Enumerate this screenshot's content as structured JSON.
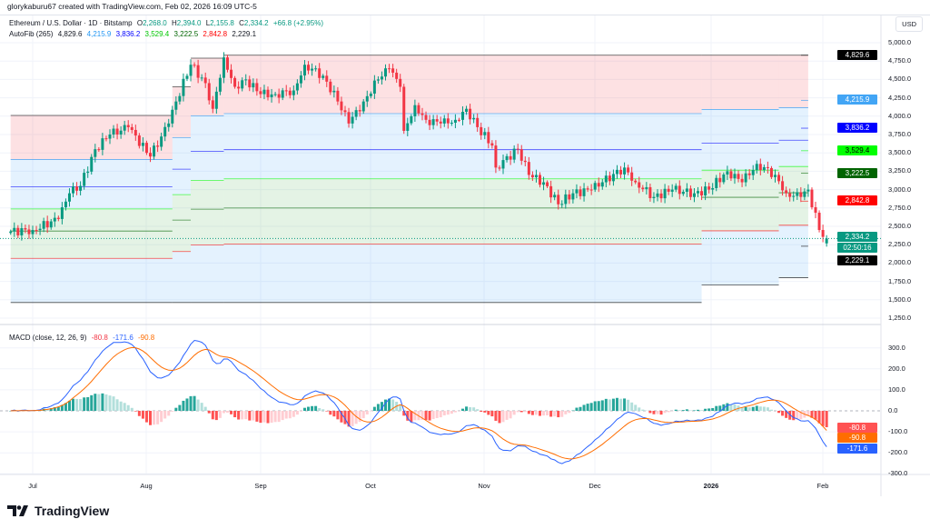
{
  "header": {
    "credit": "glorykaburu67 created with TradingView.com, Feb 02, 2026 16:09 UTC-5",
    "currency": "USD"
  },
  "legend": {
    "symbol": "Ethereum / U.S. Dollar · 1D · Bitstamp",
    "o_label": "O",
    "o": "2,268.0",
    "h_label": "H",
    "h": "2,394.0",
    "l_label": "L",
    "l": "2,155.8",
    "c_label": "C",
    "c": "2,334.2",
    "change": "+66.8 (+2.95%)",
    "autofib_label": "AutoFib (265)",
    "fib_values": [
      "4,829.6",
      "4,215.9",
      "3,836.2",
      "3,529.4",
      "3,222.5",
      "2,842.8",
      "2,229.1"
    ],
    "macd_label": "MACD (close, 12, 26, 9)",
    "macd_values": [
      "-80.8",
      "-171.6",
      "-90.8"
    ]
  },
  "colors": {
    "up": "#089981",
    "down": "#f23645",
    "macd": "#2962ff",
    "signal": "#ff6d00",
    "fib": [
      "#000000",
      "#2196f3",
      "#0000ff",
      "#00ff00",
      "#006400",
      "#ff0000",
      "#000000"
    ]
  },
  "price_axis": {
    "ticks": [
      "5,000.0",
      "4,750.0",
      "4,500.0",
      "4,250.0",
      "4,000.0",
      "3,750.0",
      "3,500.0",
      "3,250.0",
      "3,000.0",
      "2,750.0",
      "2,500.0",
      "2,250.0",
      "2,000.0",
      "1,750.0",
      "1,500.0",
      "1,250.0"
    ]
  },
  "macd_axis": {
    "ticks": [
      "300.0",
      "200.0",
      "100.0",
      "0.0",
      "-100.0",
      "-200.0",
      "-300.0"
    ]
  },
  "tags": {
    "last": "2,334.2",
    "countdown": "02:50:16",
    "hist": "-80.8",
    "signal": "-90.8",
    "macd": "-171.6"
  },
  "time_axis": {
    "labels": [
      "Jul",
      "Aug",
      "Sep",
      "Oct",
      "Nov",
      "Dec",
      "2026",
      "Feb"
    ]
  },
  "footer": {
    "brand": "TradingView"
  },
  "chart_data": {
    "type": "candlestick",
    "title": "Ethereum / U.S. Dollar · 1D · Bitstamp",
    "ylim": [
      1250,
      5000
    ],
    "close_path": [
      [
        "2025-06-25",
        2430
      ],
      [
        "2025-07-01",
        2450
      ],
      [
        "2025-07-08",
        2600
      ],
      [
        "2025-07-11",
        2950
      ],
      [
        "2025-07-14",
        3050
      ],
      [
        "2025-07-18",
        3550
      ],
      [
        "2025-07-22",
        3750
      ],
      [
        "2025-07-27",
        3850
      ],
      [
        "2025-08-02",
        3450
      ],
      [
        "2025-08-07",
        3900
      ],
      [
        "2025-08-09",
        4200
      ],
      [
        "2025-08-13",
        4700
      ],
      [
        "2025-08-17",
        4450
      ],
      [
        "2025-08-19",
        4100
      ],
      [
        "2025-08-22",
        4800
      ],
      [
        "2025-08-25",
        4400
      ],
      [
        "2025-08-28",
        4500
      ],
      [
        "2025-09-01",
        4300
      ],
      [
        "2025-09-05",
        4300
      ],
      [
        "2025-09-10",
        4350
      ],
      [
        "2025-09-13",
        4700
      ],
      [
        "2025-09-18",
        4550
      ],
      [
        "2025-09-22",
        4200
      ],
      [
        "2025-09-25",
        3900
      ],
      [
        "2025-09-29",
        4200
      ],
      [
        "2025-10-03",
        4500
      ],
      [
        "2025-10-06",
        4650
      ],
      [
        "2025-10-09",
        4400
      ],
      [
        "2025-10-10",
        3800
      ],
      [
        "2025-10-13",
        4150
      ],
      [
        "2025-10-16",
        3950
      ],
      [
        "2025-10-20",
        3900
      ],
      [
        "2025-10-24",
        3950
      ],
      [
        "2025-10-27",
        4100
      ],
      [
        "2025-10-30",
        3850
      ],
      [
        "2025-11-03",
        3600
      ],
      [
        "2025-11-04",
        3300
      ],
      [
        "2025-11-10",
        3550
      ],
      [
        "2025-11-13",
        3200
      ],
      [
        "2025-11-17",
        3100
      ],
      [
        "2025-11-21",
        2800
      ],
      [
        "2025-11-25",
        2950
      ],
      [
        "2025-11-30",
        3000
      ],
      [
        "2025-12-03",
        3100
      ],
      [
        "2025-12-09",
        3300
      ],
      [
        "2025-12-12",
        3100
      ],
      [
        "2025-12-17",
        2900
      ],
      [
        "2025-12-22",
        3000
      ],
      [
        "2025-12-28",
        2950
      ],
      [
        "2026-01-01",
        3000
      ],
      [
        "2026-01-06",
        3250
      ],
      [
        "2026-01-10",
        3100
      ],
      [
        "2026-01-14",
        3350
      ],
      [
        "2026-01-19",
        3200
      ],
      [
        "2026-01-22",
        2950
      ],
      [
        "2026-01-26",
        2900
      ],
      [
        "2026-01-28",
        3000
      ],
      [
        "2026-01-31",
        2450
      ],
      [
        "2026-02-02",
        2334.2
      ]
    ],
    "autofib_segments": [
      {
        "from": "2025-06-25",
        "top": 4010,
        "bottom": 1463
      },
      {
        "from": "2025-08-08",
        "top": 4400,
        "bottom": 1463
      },
      {
        "from": "2025-08-13",
        "top": 4790,
        "bottom": 1463
      },
      {
        "from": "2025-08-22",
        "top": 4829.6,
        "bottom": 1463
      },
      {
        "from": "2025-12-30",
        "top": 4829.6,
        "bottom": 1700
      },
      {
        "from": "2026-01-20",
        "top": 4829.6,
        "bottom": 1800
      },
      {
        "from": "2026-01-28",
        "top": 4829.6,
        "bottom": 2229.1
      }
    ],
    "fib_ratios": [
      0,
      0.236,
      0.382,
      0.5,
      0.618,
      0.764,
      1
    ],
    "macd": {
      "fast": 12,
      "slow": 26,
      "signal": 9,
      "ylim": [
        -300,
        300
      ]
    }
  }
}
